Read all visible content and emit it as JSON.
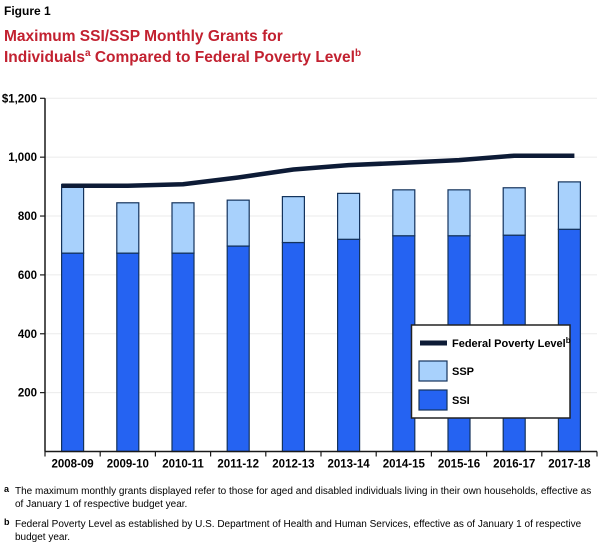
{
  "figure_label": "Figure 1",
  "title": {
    "line1": "Maximum SSI/SSP Monthly Grants for",
    "line2_pre": "Individuals",
    "line2_sup1": "a",
    "line2_mid": " Compared to Federal Poverty Level",
    "line2_sup2": "b"
  },
  "colors": {
    "title_red": "#C22130",
    "ssi_blue": "#2563F2",
    "ssp_light_blue": "#A8D1FC",
    "fpl_navy": "#0D1B36",
    "bar_border": "#14335C",
    "gridline": "#EBEBEB",
    "axis": "#1A1A1A",
    "legend_border": "#222222",
    "background": "#FFFFFF"
  },
  "chart_data": {
    "type": "bar",
    "subtype": "stacked-bars-with-line-overlay",
    "title": "Maximum SSI/SSP Monthly Grants for Individuals Compared to Federal Poverty Level",
    "xlabel": "",
    "ylabel": "",
    "unit": "dollars per month",
    "categories": [
      "2008-09",
      "2009-10",
      "2010-11",
      "2011-12",
      "2012-13",
      "2013-14",
      "2014-15",
      "2015-16",
      "2016-17",
      "2017-18"
    ],
    "series": [
      {
        "name": "SSI",
        "type": "bar",
        "stack": true,
        "color": "#2563F2",
        "values": [
          674,
          674,
          674,
          698,
          710,
          721,
          733,
          733,
          735,
          755
        ]
      },
      {
        "name": "SSP",
        "type": "bar",
        "stack": true,
        "color": "#A8D1FC",
        "values": [
          233,
          171,
          171,
          156,
          156,
          156,
          156,
          156,
          161,
          161
        ]
      },
      {
        "name": "Federal Poverty Level",
        "type": "line",
        "color": "#0D1B36",
        "values": [
          903,
          903,
          908,
          931,
          958,
          973,
          981,
          990,
          1005,
          1005
        ]
      }
    ],
    "stacked_totals": [
      907,
      845,
      845,
      854,
      866,
      877,
      889,
      889,
      896,
      916
    ],
    "ylim": [
      0,
      1200
    ],
    "yticks": [
      {
        "value": 1200,
        "label": "$1,200"
      },
      {
        "value": 1000,
        "label": "1,000"
      },
      {
        "value": 800,
        "label": "800"
      },
      {
        "value": 600,
        "label": "600"
      },
      {
        "value": 400,
        "label": "400"
      },
      {
        "value": 200,
        "label": "200"
      }
    ],
    "grid": true,
    "legend_position": "inside-right"
  },
  "legend": {
    "items": [
      {
        "label": "Federal Poverty Level",
        "sup": "b",
        "swatch": "line",
        "color": "#0D1B36"
      },
      {
        "label": "SSP",
        "sup": "",
        "swatch": "rect",
        "color": "#A8D1FC"
      },
      {
        "label": "SSI",
        "sup": "",
        "swatch": "rect",
        "color": "#2563F2"
      }
    ]
  },
  "footnotes": [
    {
      "marker": "a",
      "text": "The maximum monthly grants displayed refer to those for aged and disabled individuals living in their own households, effective as of January 1 of respective budget year."
    },
    {
      "marker": "b",
      "text": "Federal Poverty Level as established by U.S. Department of Health and Human Services, effective as of January 1 of respective budget year."
    }
  ]
}
